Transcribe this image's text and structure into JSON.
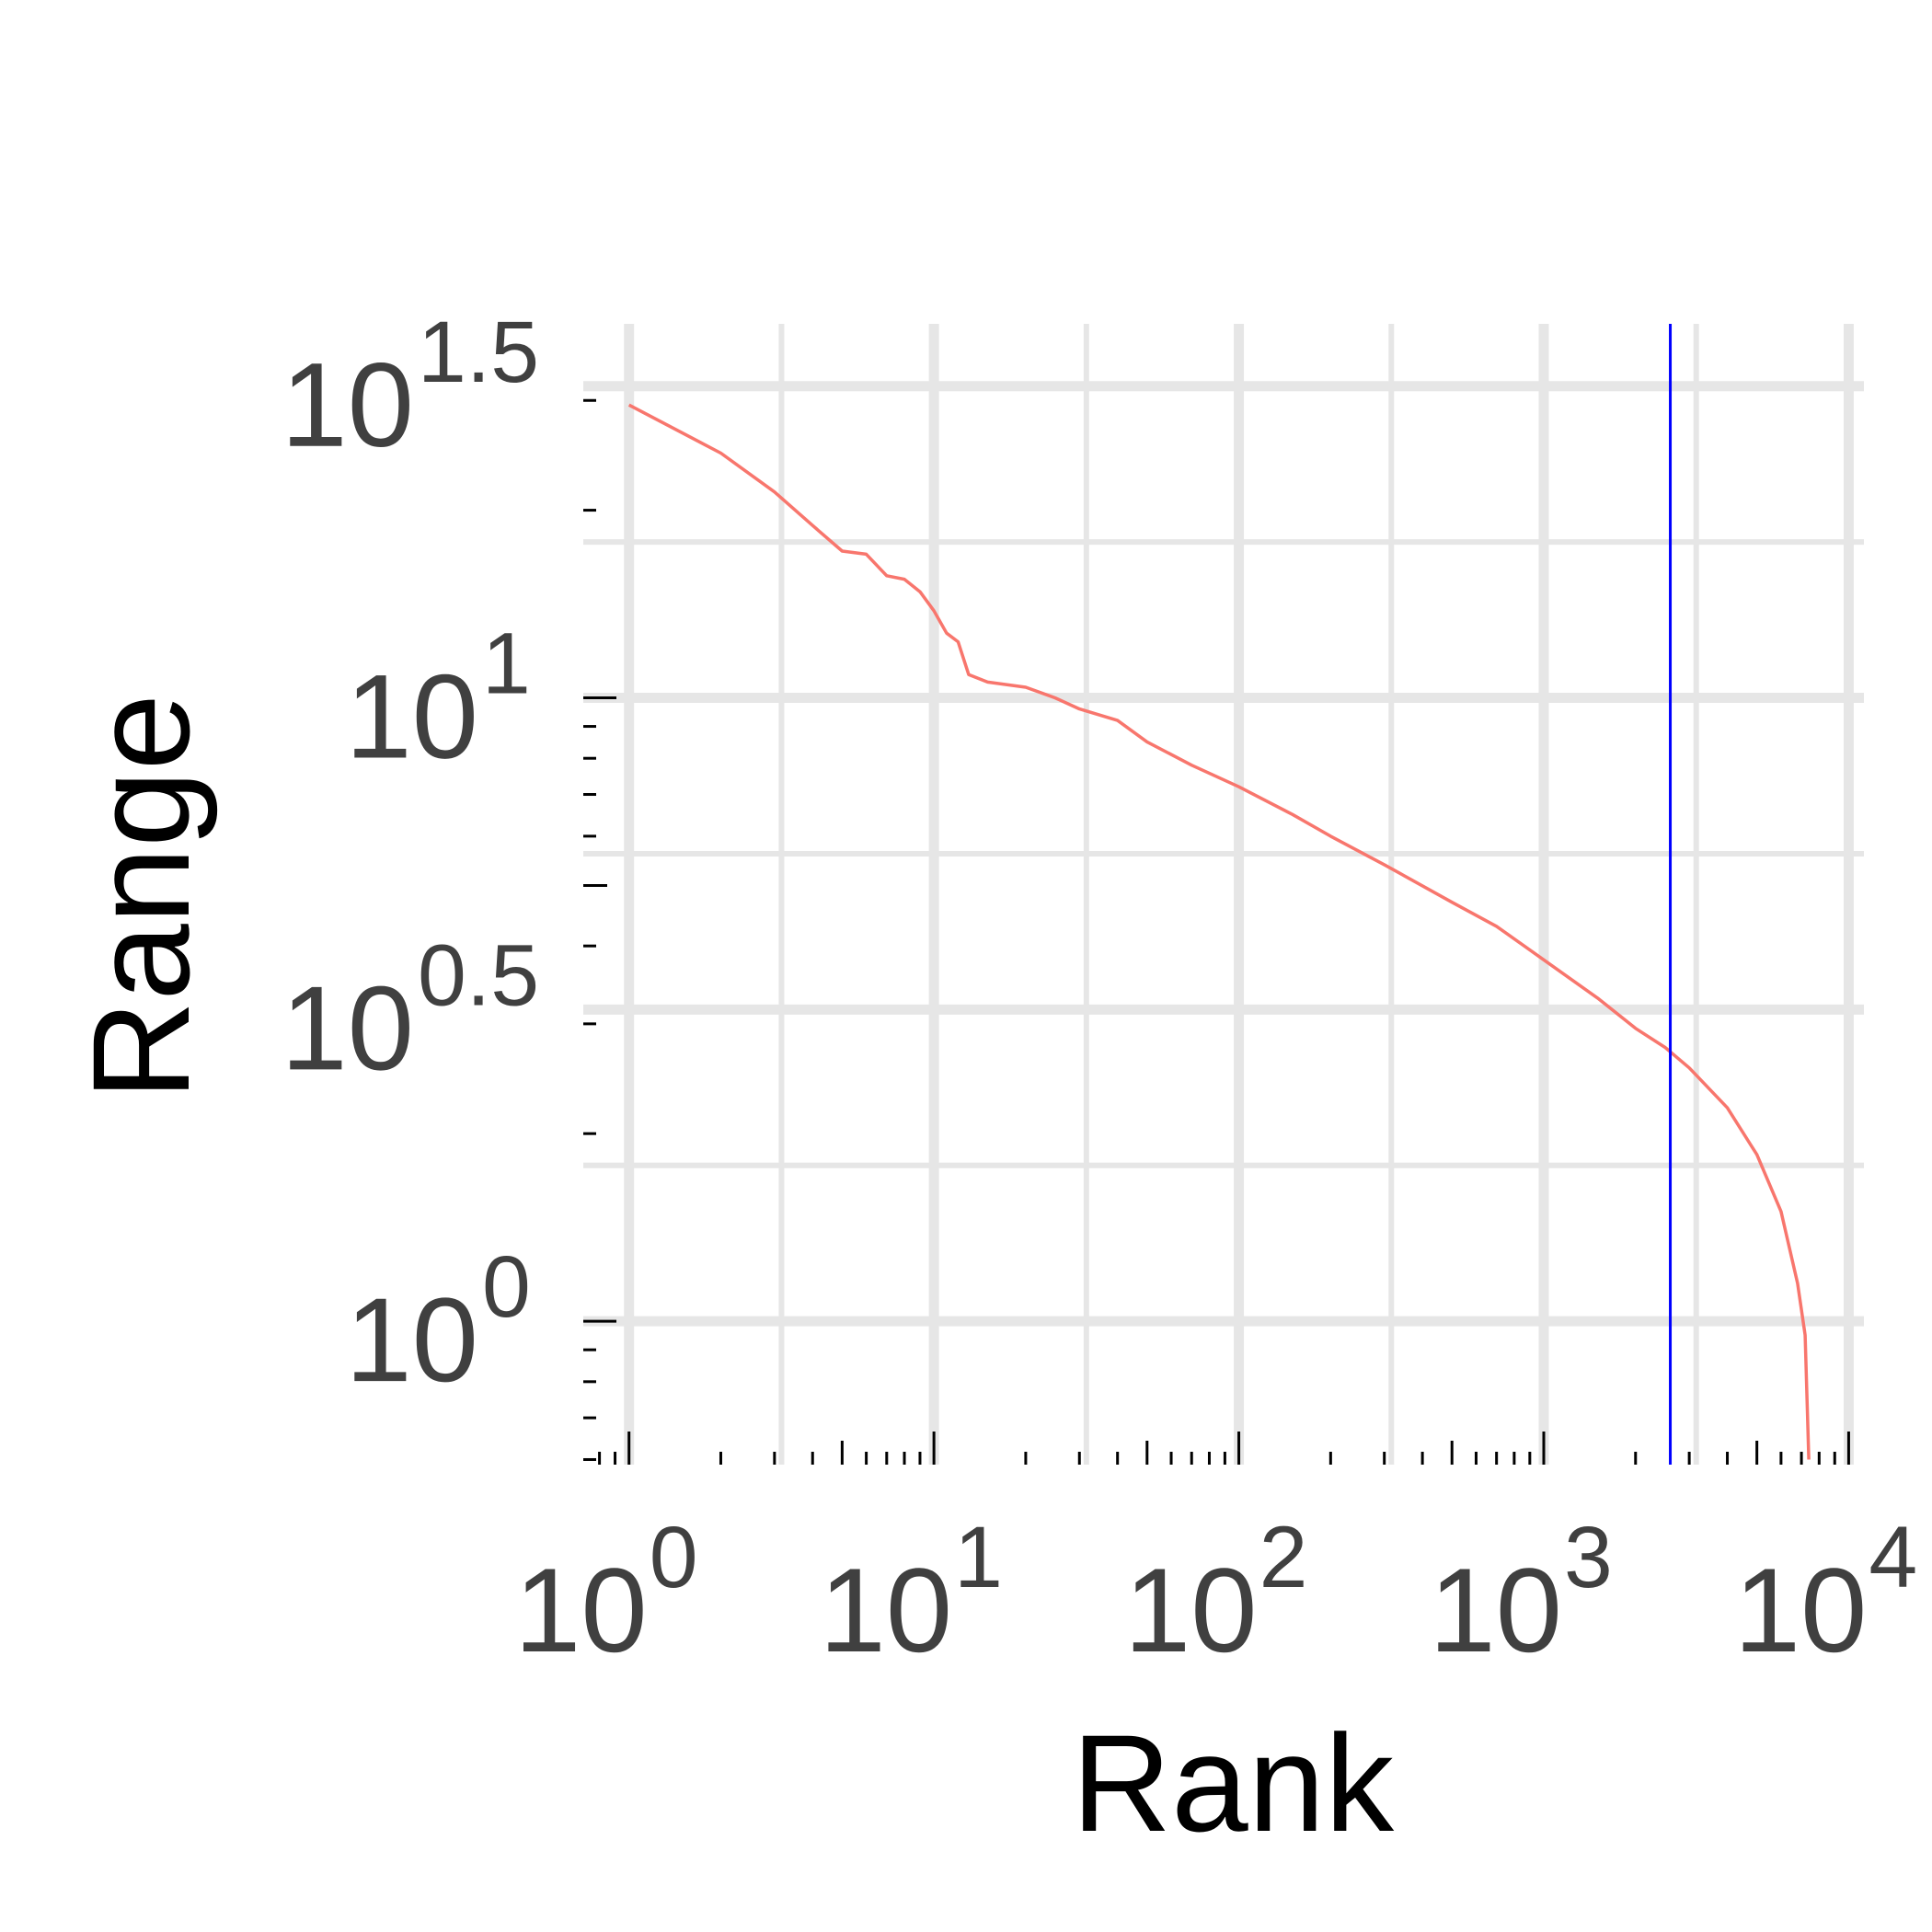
{
  "chart_data": {
    "type": "line",
    "title": "",
    "xlabel": "Rank",
    "ylabel": "Range",
    "x_scale": "log10",
    "y_scale": "log10",
    "xlim_log10": [
      -0.15,
      4.05
    ],
    "ylim_log10": [
      -0.23,
      1.6
    ],
    "grid": true,
    "x_ticks": [
      {
        "base": "10",
        "exp": "0",
        "value_log10": 0
      },
      {
        "base": "10",
        "exp": "1",
        "value_log10": 1
      },
      {
        "base": "10",
        "exp": "2",
        "value_log10": 2
      },
      {
        "base": "10",
        "exp": "3",
        "value_log10": 3
      },
      {
        "base": "10",
        "exp": "4",
        "value_log10": 4
      }
    ],
    "y_ticks": [
      {
        "base": "10",
        "exp": "0",
        "value_log10": 0
      },
      {
        "base": "10",
        "exp": "0.5",
        "value_log10": 0.5
      },
      {
        "base": "10",
        "exp": "1",
        "value_log10": 1
      },
      {
        "base": "10",
        "exp": "1.5",
        "value_log10": 1.5
      }
    ],
    "series": [
      {
        "color": "#f8766d",
        "points": [
          {
            "rank": 1,
            "range": 29.5
          },
          {
            "rank": 2,
            "range": 24.7
          },
          {
            "rank": 3,
            "range": 21.4
          },
          {
            "rank": 4,
            "range": 18.9
          },
          {
            "rank": 5,
            "range": 17.2
          },
          {
            "rank": 6,
            "range": 17.0
          },
          {
            "rank": 7,
            "range": 15.7
          },
          {
            "rank": 8,
            "range": 15.5
          },
          {
            "rank": 9,
            "range": 14.8
          },
          {
            "rank": 10,
            "range": 13.8
          },
          {
            "rank": 11,
            "range": 12.7
          },
          {
            "rank": 12,
            "range": 12.3
          },
          {
            "rank": 13,
            "range": 10.9
          },
          {
            "rank": 15,
            "range": 10.6
          },
          {
            "rank": 20,
            "range": 10.4
          },
          {
            "rank": 25,
            "range": 10.0
          },
          {
            "rank": 30,
            "range": 9.6
          },
          {
            "rank": 40,
            "range": 9.2
          },
          {
            "rank": 50,
            "range": 8.5
          },
          {
            "rank": 70,
            "range": 7.8
          },
          {
            "rank": 100,
            "range": 7.2
          },
          {
            "rank": 150,
            "range": 6.5
          },
          {
            "rank": 200,
            "range": 6.0
          },
          {
            "rank": 300,
            "range": 5.4
          },
          {
            "rank": 500,
            "range": 4.7
          },
          {
            "rank": 700,
            "range": 4.3
          },
          {
            "rank": 1000,
            "range": 3.8
          },
          {
            "rank": 1500,
            "range": 3.3
          },
          {
            "rank": 2000,
            "range": 2.95
          },
          {
            "rank": 2500,
            "range": 2.75
          },
          {
            "rank": 3000,
            "range": 2.55
          },
          {
            "rank": 4000,
            "range": 2.2
          },
          {
            "rank": 5000,
            "range": 1.85
          },
          {
            "rank": 6000,
            "range": 1.5
          },
          {
            "rank": 6800,
            "range": 1.15
          },
          {
            "rank": 7200,
            "range": 0.95
          },
          {
            "rank": 7400,
            "range": 0.6
          }
        ]
      }
    ],
    "reference_line": {
      "axis": "x",
      "rank": 2600,
      "color": "#0000ff"
    }
  }
}
